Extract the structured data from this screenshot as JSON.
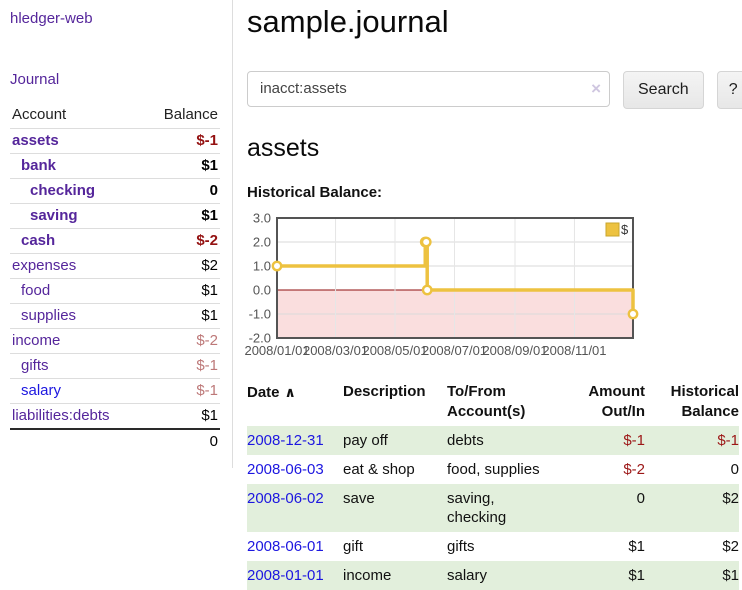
{
  "app": {
    "title": "hledger-web"
  },
  "sidebar": {
    "journal_link": "Journal",
    "accounts": {
      "header_account": "Account",
      "header_balance": "Balance",
      "rows": [
        {
          "account": "assets",
          "balance": "$-1",
          "depth": 1,
          "emphasis": true,
          "negative": "strong"
        },
        {
          "account": "bank",
          "balance": "$1",
          "depth": 2,
          "emphasis": true,
          "negative": "none"
        },
        {
          "account": "checking",
          "balance": "0",
          "depth": 3,
          "emphasis": true,
          "negative": "none"
        },
        {
          "account": "saving",
          "balance": "$1",
          "depth": 3,
          "emphasis": true,
          "negative": "none"
        },
        {
          "account": "cash",
          "balance": "$-2",
          "depth": 2,
          "emphasis": true,
          "negative": "strong"
        },
        {
          "account": "expenses",
          "balance": "$2",
          "depth": 1,
          "emphasis": false,
          "negative": "none"
        },
        {
          "account": "food",
          "balance": "$1",
          "depth": 2,
          "emphasis": false,
          "negative": "none"
        },
        {
          "account": "supplies",
          "balance": "$1",
          "depth": 2,
          "emphasis": false,
          "negative": "none"
        },
        {
          "account": "income",
          "balance": "$-2",
          "depth": 1,
          "emphasis": false,
          "negative": "muted"
        },
        {
          "account": "gifts",
          "balance": "$-1",
          "depth": 2,
          "emphasis": false,
          "negative": "muted"
        },
        {
          "account": "salary",
          "balance": "$-1",
          "depth": 2,
          "emphasis": false,
          "negative": "muted",
          "link_style": "blue"
        },
        {
          "account": "liabilities:debts",
          "balance": "$1",
          "depth": 1,
          "emphasis": false,
          "negative": "none"
        }
      ],
      "total": "0"
    }
  },
  "main": {
    "title": "sample.journal",
    "search": {
      "value": "inacct:assets",
      "clear_icon": "×",
      "search_button": "Search",
      "help_button": "?"
    },
    "account_heading": "assets",
    "chart_label": "Historical Balance:"
  },
  "chart_data": {
    "type": "line",
    "title": "Historical Balance",
    "steps": true,
    "series": [
      {
        "name": "$",
        "color": "#edc240",
        "points": [
          [
            "2008-01-01",
            1
          ],
          [
            "2008-06-01",
            2
          ],
          [
            "2008-06-02",
            2
          ],
          [
            "2008-06-03",
            0
          ],
          [
            "2008-12-31",
            -1
          ]
        ]
      }
    ],
    "ylim": [
      -2,
      3
    ],
    "yticks": [
      3,
      2,
      1,
      0,
      -1,
      -2
    ],
    "xticks": [
      "2008/01/01",
      "2008/03/01",
      "2008/05/01",
      "2008/07/01",
      "2008/09/01",
      "2008/11/01"
    ],
    "legend_position": "top-right",
    "grid": true,
    "negative_fill": "#fadede",
    "zero_line_color": "#8f0e0e"
  },
  "register": {
    "headers": {
      "date": "Date",
      "sort_icon": "∧",
      "description": "Description",
      "accounts": "To/From Account(s)",
      "amount": "Amount Out/In",
      "balance": "Historical Balance"
    },
    "rows": [
      {
        "date": "2008-12-31",
        "description": "pay off",
        "accounts": "debts",
        "amount": "$-1",
        "balance": "$-1",
        "amount_negative": true,
        "balance_negative": true,
        "shade": true
      },
      {
        "date": "2008-06-03",
        "description": "eat & shop",
        "accounts": "food, supplies",
        "amount": "$-2",
        "balance": "0",
        "amount_negative": true,
        "balance_negative": false,
        "shade": false
      },
      {
        "date": "2008-06-02",
        "description": "save",
        "accounts": "saving, checking",
        "amount": "0",
        "balance": "$2",
        "amount_negative": false,
        "balance_negative": false,
        "shade": true
      },
      {
        "date": "2008-06-01",
        "description": "gift",
        "accounts": "gifts",
        "amount": "$1",
        "balance": "$2",
        "amount_negative": false,
        "balance_negative": false,
        "shade": false
      },
      {
        "date": "2008-01-01",
        "description": "income",
        "accounts": "salary",
        "amount": "$1",
        "balance": "$1",
        "amount_negative": false,
        "balance_negative": false,
        "shade": true
      }
    ]
  }
}
